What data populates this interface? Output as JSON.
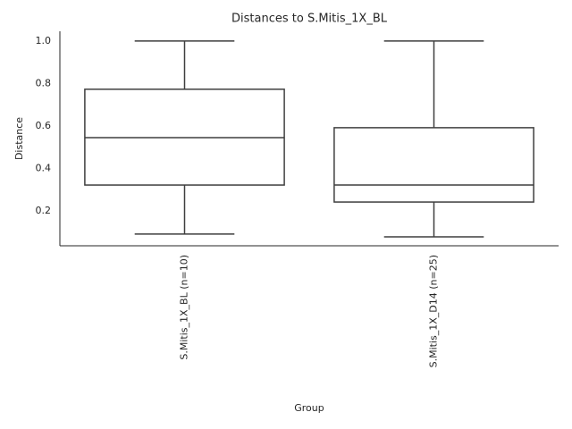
{
  "chart_data": {
    "type": "box",
    "title": "Distances to S.Mitis_1X_BL",
    "xlabel": "Group",
    "ylabel": "Distance",
    "categories": [
      "S.Mitis_1X_BL (n=10)",
      "S.Mitis_1X_D14 (n=25)"
    ],
    "boxes": [
      {
        "min": 0.091,
        "q1": 0.322,
        "median": 0.545,
        "q3": 0.773,
        "max": 1.0
      },
      {
        "min": 0.078,
        "q1": 0.242,
        "median": 0.322,
        "q3": 0.592,
        "max": 1.0
      }
    ],
    "color": "#ffffff",
    "edge_color": "#3f3f3f",
    "ylim": [
      0.036,
      1.046
    ],
    "yticks": [
      0.2,
      0.4,
      0.6,
      0.8,
      {
        "value": 1.0,
        "label": "1.0"
      }
    ],
    "grid": false
  }
}
